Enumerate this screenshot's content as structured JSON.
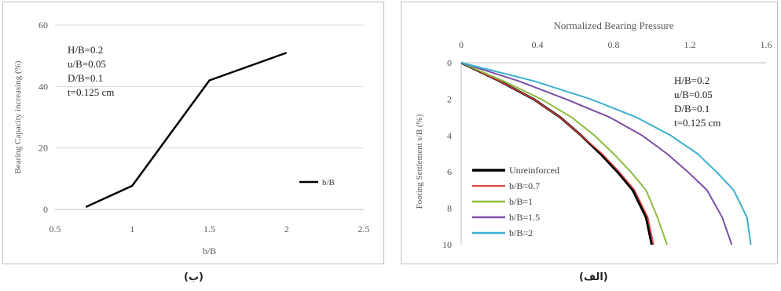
{
  "chart_data": [
    {
      "id": "left",
      "type": "line",
      "xlabel": "b/B",
      "ylabel": "Bearing Capacity increasing (%)",
      "xlim": [
        0.5,
        2.5
      ],
      "ylim": [
        0,
        60
      ],
      "xticks": [
        "0.5",
        "1",
        "1.5",
        "2",
        "2.5"
      ],
      "yticks": [
        "0",
        "20",
        "40",
        "60"
      ],
      "grid": "horizontal",
      "legend_position": "right",
      "annotation": [
        "H/B=0.2",
        "u/B=0.05",
        "D/B=0.1",
        "t=0.125 cm"
      ],
      "series": [
        {
          "name": "b/B",
          "color": "#000000",
          "x": [
            0.7,
            1.0,
            1.5,
            2.0
          ],
          "y": [
            0.8,
            7.7,
            42,
            51
          ]
        }
      ],
      "caption": "(ب)"
    },
    {
      "id": "right",
      "type": "line",
      "title": "Normalized Bearing Pressure",
      "xlabel_position": "top",
      "ylabel": "Footing Settlement s/B (%)",
      "xlim": [
        0,
        1.6
      ],
      "ylim": [
        0,
        10
      ],
      "y_inverted": true,
      "xticks": [
        "0",
        "0.4",
        "0.8",
        "1.2",
        "1.6"
      ],
      "yticks": [
        "0",
        "2",
        "4",
        "6",
        "8",
        "10"
      ],
      "grid": "none",
      "legend_position": "bottom-left",
      "annotation": [
        "H/B=0.2",
        "u/B=0.05",
        "D/B=0.1",
        "t=0.125 cm"
      ],
      "series": [
        {
          "name": "Unreinforced",
          "color": "#000000",
          "width": 3,
          "x": [
            0,
            0.2,
            0.38,
            0.52,
            0.63,
            0.73,
            0.82,
            0.9,
            0.97,
            1.0
          ],
          "y": [
            0,
            1,
            2,
            3,
            4,
            5,
            6,
            7,
            8.5,
            10
          ]
        },
        {
          "name": "b/B=0.7",
          "color": "#e04040",
          "width": 1.5,
          "x": [
            0,
            0.2,
            0.38,
            0.52,
            0.63,
            0.74,
            0.83,
            0.91,
            0.98,
            1.01
          ],
          "y": [
            0,
            1,
            2,
            3,
            4,
            5,
            6,
            7,
            8.5,
            10
          ]
        },
        {
          "name": "b/B=1",
          "color": "#8cbd3f",
          "width": 2,
          "x": [
            0,
            0.22,
            0.42,
            0.58,
            0.7,
            0.8,
            0.89,
            0.97,
            1.03,
            1.08
          ],
          "y": [
            0,
            1,
            2,
            3,
            4,
            5,
            6,
            7,
            8.5,
            10
          ]
        },
        {
          "name": "b/B=1.5",
          "color": "#7b4fa6",
          "width": 2,
          "x": [
            0,
            0.3,
            0.55,
            0.78,
            0.95,
            1.08,
            1.19,
            1.29,
            1.37,
            1.42
          ],
          "y": [
            0,
            1,
            2,
            3,
            4,
            5,
            6,
            7,
            8.5,
            10
          ]
        },
        {
          "name": "b/B=2",
          "color": "#3bb0cf",
          "width": 2,
          "x": [
            0,
            0.38,
            0.68,
            0.92,
            1.1,
            1.24,
            1.34,
            1.43,
            1.5,
            1.52
          ],
          "y": [
            0,
            1,
            2,
            3,
            4,
            5,
            6,
            7,
            8.5,
            10
          ]
        }
      ],
      "caption": "(الف)"
    }
  ]
}
